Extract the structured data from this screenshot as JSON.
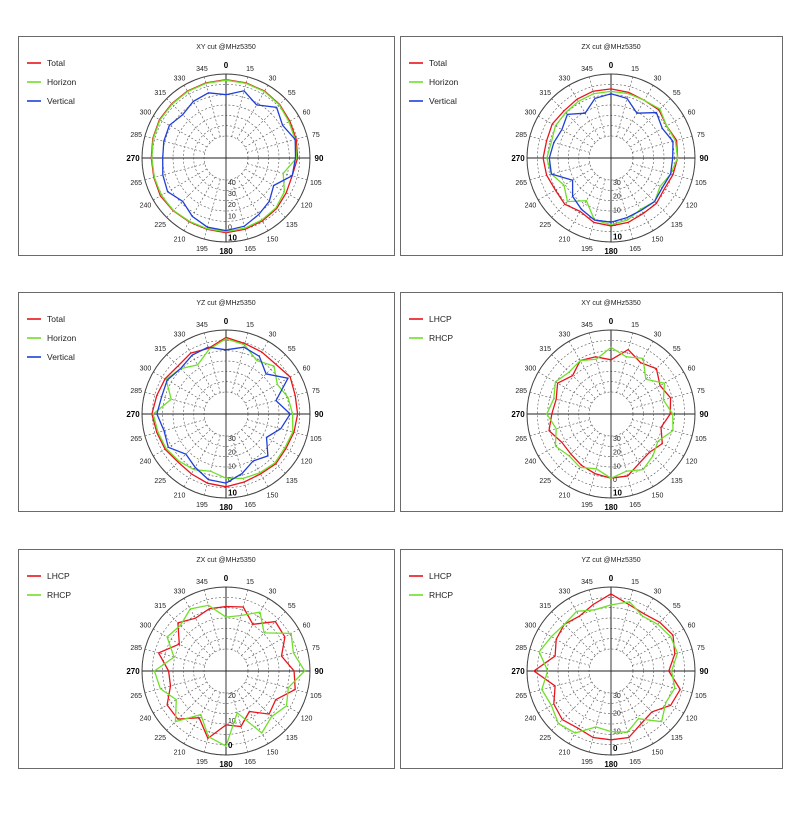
{
  "colors": {
    "red": "#e8141b",
    "green": "#6fe02a",
    "blue": "#1f3fd8",
    "grid": "#555555"
  },
  "chart_data": [
    {
      "type": "polar",
      "title": "XY cut @MHz5350",
      "angle_labels": [
        "0",
        "15",
        "30",
        "55",
        "60",
        "75",
        "90",
        "105",
        "120",
        "135",
        "150",
        "165",
        "180",
        "195",
        "210",
        "225",
        "240",
        "265",
        "270",
        "285",
        "300",
        "315",
        "330",
        "345"
      ],
      "radial_ticks": [
        "40",
        "30",
        "20",
        "10",
        "0",
        "10"
      ],
      "rlim": [
        -50,
        10
      ],
      "legend": "top-left",
      "series": [
        {
          "name": "Total",
          "color": "#e8141b",
          "r": [
            4.5,
            4,
            3.5,
            2,
            0,
            -1,
            -2,
            -5,
            -4,
            -2,
            -1,
            0,
            1,
            0,
            0,
            1,
            2,
            1,
            1,
            2,
            3,
            3,
            3.5,
            4
          ]
        },
        {
          "name": "Horizon",
          "color": "#6fe02a",
          "r": [
            4,
            3.5,
            3,
            1.5,
            -1,
            -2,
            -3,
            -14,
            -6,
            -3,
            -2,
            -1,
            0,
            -0.5,
            -0.5,
            0.5,
            1,
            0.5,
            0.5,
            1.5,
            2.5,
            2.5,
            3,
            3.5
          ]
        },
        {
          "name": "Vertical",
          "color": "#1f3fd8",
          "r": [
            -10,
            -4,
            -12,
            -2,
            -8,
            -2,
            -4,
            -5,
            -18,
            -12,
            -8,
            -3,
            -1,
            -2,
            -6,
            -12,
            -6,
            -8,
            -10,
            -9,
            -8,
            -12,
            -8,
            -6
          ]
        }
      ]
    },
    {
      "type": "polar",
      "title": "ZX cut @MHz5350",
      "angle_labels": [
        "0",
        "15",
        "30",
        "55",
        "60",
        "75",
        "90",
        "105",
        "120",
        "135",
        "150",
        "165",
        "180",
        "195",
        "210",
        "225",
        "240",
        "265",
        "270",
        "285",
        "300",
        "315",
        "330",
        "345"
      ],
      "radial_ticks": [
        "30",
        "20",
        "10",
        "0",
        "10"
      ],
      "rlim": [
        -40,
        10
      ],
      "legend": "top-left",
      "series": [
        {
          "name": "Total",
          "color": "#e8141b",
          "r": [
            -2,
            -3,
            -4,
            -3,
            -6,
            -3,
            -4,
            -6,
            -8,
            -6,
            -6,
            -4,
            -3,
            -4,
            -8,
            -5,
            -6,
            -4,
            -3,
            -4,
            -3,
            -4,
            -3,
            -2
          ]
        },
        {
          "name": "Horizon",
          "color": "#6fe02a",
          "r": [
            -4,
            -4,
            -4,
            -2,
            -6,
            -4,
            -4,
            -8,
            -12,
            -8,
            -10,
            -6,
            -4,
            -6,
            -18,
            -8,
            -14,
            -8,
            -6,
            -8,
            -6,
            -6,
            -5,
            -4
          ]
        },
        {
          "name": "Vertical",
          "color": "#1f3fd8",
          "r": [
            -6,
            -8,
            -16,
            -6,
            -10,
            -6,
            -8,
            -8,
            -10,
            -8,
            -9,
            -8,
            -6,
            -6,
            -10,
            -14,
            -22,
            -8,
            -8,
            -10,
            -12,
            -8,
            -16,
            -8
          ]
        }
      ]
    },
    {
      "type": "polar",
      "title": "YZ cut @MHz5350",
      "angle_labels": [
        "0",
        "15",
        "30",
        "55",
        "60",
        "75",
        "90",
        "105",
        "120",
        "135",
        "150",
        "165",
        "180",
        "195",
        "210",
        "225",
        "240",
        "265",
        "270",
        "285",
        "300",
        "315",
        "330",
        "345"
      ],
      "radial_ticks": [
        "30",
        "20",
        "10",
        "0",
        "10"
      ],
      "rlim": [
        -40,
        10
      ],
      "legend": "top-left",
      "series": [
        {
          "name": "Total",
          "color": "#e8141b",
          "r": [
            4,
            1,
            0,
            -1,
            2,
            0,
            0,
            -1,
            -2,
            -1,
            -2,
            -1,
            1,
            0,
            -2,
            -3,
            -1,
            0,
            2,
            0,
            -1,
            -3,
            -1,
            -3
          ]
        },
        {
          "name": "Horizon",
          "color": "#6fe02a",
          "r": [
            3,
            0,
            -8,
            -3,
            -10,
            -6,
            -4,
            -2,
            -3,
            -2,
            -3,
            -4,
            -6,
            -10,
            -6,
            -4,
            -2,
            -1,
            1,
            -12,
            -2,
            -6,
            -12,
            -4
          ]
        },
        {
          "name": "Vertical",
          "color": "#1f3fd8",
          "r": [
            -6,
            -2,
            -4,
            -12,
            0,
            -16,
            -6,
            -12,
            -20,
            -10,
            -14,
            -8,
            -2,
            -3,
            -8,
            -12,
            -4,
            -6,
            -2,
            -4,
            -3,
            -6,
            -3,
            -2
          ]
        }
      ]
    },
    {
      "type": "polar",
      "title": "XY cut @MHz5350",
      "angle_labels": [
        "0",
        "15",
        "30",
        "55",
        "60",
        "75",
        "90",
        "105",
        "120",
        "135",
        "150",
        "165",
        "180",
        "195",
        "210",
        "225",
        "240",
        "265",
        "270",
        "285",
        "300",
        "315",
        "330",
        "345"
      ],
      "radial_ticks": [
        "30",
        "20",
        "10",
        "0",
        "10"
      ],
      "rlim": [
        -40,
        10
      ],
      "legend": "top-left",
      "series": [
        {
          "name": "LHCP",
          "color": "#e8141b",
          "r": [
            -14,
            -4,
            -10,
            -6,
            -12,
            -8,
            -10,
            -16,
            -10,
            -14,
            -12,
            -6,
            -6,
            -8,
            -10,
            -12,
            -12,
            -6,
            -10,
            -12,
            -8,
            -14,
            -8,
            -10
          ]
        },
        {
          "name": "RHCP",
          "color": "#6fe02a",
          "r": [
            -4,
            -10,
            -6,
            -18,
            -8,
            -14,
            -8,
            -6,
            -14,
            -10,
            -6,
            -10,
            -6,
            -12,
            -8,
            -10,
            -6,
            -12,
            -6,
            -10,
            -6,
            -10,
            -8,
            -12
          ]
        }
      ]
    },
    {
      "type": "polar",
      "title": "ZX cut @MHz5350",
      "angle_labels": [
        "0",
        "15",
        "30",
        "55",
        "60",
        "75",
        "90",
        "105",
        "120",
        "135",
        "150",
        "165",
        "180",
        "195",
        "210",
        "225",
        "240",
        "265",
        "270",
        "285",
        "300",
        "315",
        "330",
        "345"
      ],
      "radial_ticks": [
        "20",
        "10",
        "0"
      ],
      "rlim": [
        -30,
        5
      ],
      "legend": "top-left",
      "series": [
        {
          "name": "LHCP",
          "color": "#e8141b",
          "r": [
            -6,
            -5,
            -12,
            -3,
            -4,
            -10,
            -4,
            -2,
            -10,
            -8,
            -16,
            -10,
            -12,
            -3,
            -12,
            -4,
            -4,
            -10,
            -10,
            -3,
            -12,
            -4,
            -8,
            -6
          ]
        },
        {
          "name": "RHCP",
          "color": "#6fe02a",
          "r": [
            -12,
            -10,
            -4,
            -12,
            0,
            -3,
            2,
            -6,
            -3,
            -6,
            -2,
            -18,
            0,
            -4,
            -14,
            -2,
            -10,
            -4,
            -2,
            -12,
            -4,
            -6,
            -2,
            -4
          ]
        }
      ]
    },
    {
      "type": "polar",
      "title": "YZ cut @MHz5350",
      "angle_labels": [
        "0",
        "15",
        "30",
        "55",
        "60",
        "75",
        "90",
        "105",
        "120",
        "135",
        "150",
        "165",
        "180",
        "195",
        "210",
        "225",
        "240",
        "265",
        "270",
        "285",
        "300",
        "315",
        "330",
        "345"
      ],
      "radial_ticks": [
        "30",
        "20",
        "10",
        "0"
      ],
      "rlim": [
        -40,
        5
      ],
      "legend": "top-left",
      "series": [
        {
          "name": "LHCP",
          "color": "#e8141b",
          "r": [
            0,
            -6,
            -8,
            -6,
            -4,
            -8,
            -14,
            -4,
            -6,
            -14,
            -12,
            -6,
            -6,
            -6,
            -8,
            -6,
            -8,
            -14,
            0,
            -14,
            -10,
            -8,
            -10,
            -6
          ]
        },
        {
          "name": "RHCP",
          "color": "#6fe02a",
          "r": [
            -8,
            -4,
            -10,
            -8,
            -6,
            -6,
            -12,
            -8,
            -10,
            -4,
            -16,
            -10,
            -12,
            -14,
            -4,
            -2,
            -6,
            -4,
            -10,
            -2,
            -6,
            -8,
            -6,
            -10
          ]
        }
      ]
    }
  ]
}
